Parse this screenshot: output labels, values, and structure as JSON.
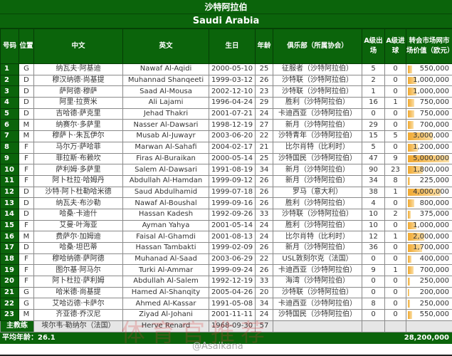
{
  "title": "沙特阿拉伯",
  "subtitle": "Saudi Arabia",
  "headers": {
    "no": "号码",
    "pos": "位置",
    "cn": "中文",
    "en": "英文",
    "dob": "生日",
    "age": "年龄",
    "club": "俱乐部（所属协会）",
    "caps": "A级出场",
    "goals": "A级进球",
    "value": "转会市场网市场价值（欧元）"
  },
  "players": [
    {
      "no": "1",
      "pos": "G",
      "cn": "纳瓦夫·阿基迪",
      "en": "Nawaf Al-Aqidi",
      "dob": "2000-05-10",
      "age": "25",
      "club": "征服者（沙特阿拉伯）",
      "caps": "5",
      "goals": "0",
      "value": "550,000",
      "v": 550000
    },
    {
      "no": "2",
      "pos": "D",
      "cn": "穆汉纳德·尚基提",
      "en": "Muhannad Shanqeeti",
      "dob": "1999-03-12",
      "age": "26",
      "club": "沙特联（沙特阿拉伯）",
      "caps": "2",
      "goals": "0",
      "value": "1,000,000",
      "v": 1000000
    },
    {
      "no": "3",
      "pos": "D",
      "cn": "萨阿德·穆萨",
      "en": "Saad Al-Mousa",
      "dob": "2002-12-10",
      "age": "23",
      "club": "沙特联（沙特阿拉伯）",
      "caps": "1",
      "goals": "0",
      "value": "1,000,000",
      "v": 1000000
    },
    {
      "no": "4",
      "pos": "D",
      "cn": "阿里·拉贾米",
      "en": "Ali Lajami",
      "dob": "1996-04-24",
      "age": "29",
      "club": "胜利（沙特阿拉伯）",
      "caps": "16",
      "goals": "1",
      "value": "750,000",
      "v": 750000
    },
    {
      "no": "5",
      "pos": "D",
      "cn": "吉哈德·萨克里",
      "en": "Jehad Thakri",
      "dob": "2001-07-21",
      "age": "24",
      "club": "卡迪西亚（沙特阿拉伯）",
      "caps": "0",
      "goals": "0",
      "value": "750,000",
      "v": 750000
    },
    {
      "no": "6",
      "pos": "M",
      "cn": "纳赛尔·多萨里",
      "en": "Nasser Al-Dawsari",
      "dob": "1998-12-19",
      "age": "27",
      "club": "新月（沙特阿拉伯）",
      "caps": "29",
      "goals": "0",
      "value": "700,000",
      "v": 700000
    },
    {
      "no": "7",
      "pos": "M",
      "cn": "穆萨卜·朱瓦伊尔",
      "en": "Musab Al-Juwayr",
      "dob": "2003-06-20",
      "age": "22",
      "club": "沙特青年（沙特阿拉伯）",
      "caps": "15",
      "goals": "5",
      "value": "3,000,000",
      "v": 3000000
    },
    {
      "no": "8",
      "pos": "F",
      "cn": "马尔万·萨哈菲",
      "en": "Marwan Al-Sahafi",
      "dob": "2004-02-17",
      "age": "21",
      "club": "比尔肖特（比利时）",
      "caps": "5",
      "goals": "0",
      "value": "1,200,000",
      "v": 1200000
    },
    {
      "no": "9",
      "pos": "F",
      "cn": "菲拉斯·布赖坎",
      "en": "Firas Al-Buraikan",
      "dob": "2000-05-14",
      "age": "25",
      "club": "沙特国民（沙特阿拉伯）",
      "caps": "47",
      "goals": "9",
      "value": "5,000,000",
      "v": 5000000
    },
    {
      "no": "10",
      "pos": "F",
      "cn": "萨利姆·多萨里",
      "en": "Salem Al-Dawsari",
      "dob": "1991-08-19",
      "age": "34",
      "club": "新月（沙特阿拉伯）",
      "caps": "90",
      "goals": "23",
      "value": "1,800,000",
      "v": 1800000
    },
    {
      "no": "11",
      "pos": "F",
      "cn": "阿卜杜拉·哈姆丹",
      "en": "Abdullah Al-Hamdan",
      "dob": "1999-09-12",
      "age": "26",
      "club": "新月（沙特阿拉伯）",
      "caps": "34",
      "goals": "8",
      "value": "225,000",
      "v": 225000
    },
    {
      "no": "12",
      "pos": "D",
      "cn": "沙特·阿卜杜勒哈米德",
      "en": "Saud Abdulhamid",
      "dob": "1999-07-18",
      "age": "26",
      "club": "罗马（意大利）",
      "caps": "38",
      "goals": "1",
      "value": "4,000,000",
      "v": 4000000
    },
    {
      "no": "13",
      "pos": "D",
      "cn": "纳瓦夫·布沙勒",
      "en": "Nawaf Al-Boushal",
      "dob": "1999-09-16",
      "age": "26",
      "club": "胜利（沙特阿拉伯）",
      "caps": "4",
      "goals": "0",
      "value": "800,000",
      "v": 800000
    },
    {
      "no": "14",
      "pos": "D",
      "cn": "哈桑·卡迪什",
      "en": "Hassan Kadesh",
      "dob": "1992-09-26",
      "age": "33",
      "club": "沙特联（沙特阿拉伯）",
      "caps": "10",
      "goals": "2",
      "value": "375,000",
      "v": 375000
    },
    {
      "no": "15",
      "pos": "F",
      "cn": "艾曼·叶海亚",
      "en": "Ayman Yahya",
      "dob": "2001-05-14",
      "age": "24",
      "club": "胜利（沙特阿拉伯）",
      "caps": "10",
      "goals": "0",
      "value": "1,000,000",
      "v": 1000000
    },
    {
      "no": "16",
      "pos": "M",
      "cn": "费萨尔·加姆迪",
      "en": "Faisal Al-Ghamdi",
      "dob": "2001-08-13",
      "age": "24",
      "club": "比尔肖特（比利时）",
      "caps": "12",
      "goals": "1",
      "value": "2,000,000",
      "v": 2000000
    },
    {
      "no": "17",
      "pos": "D",
      "cn": "哈桑·坦巴蒂",
      "en": "Hassan Tambakti",
      "dob": "1999-02-09",
      "age": "26",
      "club": "新月（沙特阿拉伯）",
      "caps": "36",
      "goals": "0",
      "value": "1,700,000",
      "v": 1700000
    },
    {
      "no": "18",
      "pos": "F",
      "cn": "穆哈纳德·萨阿德",
      "en": "Muhanad Al-Saad",
      "dob": "2003-06-29",
      "age": "22",
      "club": "USL敦刻尔克（法国）",
      "caps": "0",
      "goals": "0",
      "value": "400,000",
      "v": 400000
    },
    {
      "no": "19",
      "pos": "F",
      "cn": "图尔基·阿马尔",
      "en": "Turki Al-Ammar",
      "dob": "1999-09-24",
      "age": "26",
      "club": "卡迪西亚（沙特阿拉伯）",
      "caps": "9",
      "goals": "1",
      "value": "700,000",
      "v": 700000
    },
    {
      "no": "20",
      "pos": "F",
      "cn": "阿卜杜拉·萨利姆",
      "en": "Abdullah Al-Salem",
      "dob": "1992-12-19",
      "age": "33",
      "club": "海湾（沙特阿拉伯）",
      "caps": "0",
      "goals": "0",
      "value": "250,000",
      "v": 250000
    },
    {
      "no": "21",
      "pos": "G",
      "cn": "哈米德·尚基提",
      "en": "Hamed Al-Shanqity",
      "dob": "2005-04-26",
      "age": "20",
      "club": "沙特联（沙特阿拉伯）",
      "caps": "0",
      "goals": "0",
      "value": "200,000",
      "v": 200000
    },
    {
      "no": "22",
      "pos": "G",
      "cn": "艾哈迈德·卡萨尔",
      "en": "Ahmed Al-Kassar",
      "dob": "1991-05-08",
      "age": "34",
      "club": "卡迪西亚（沙特阿拉伯）",
      "caps": "8",
      "goals": "0",
      "value": "250,000",
      "v": 250000
    },
    {
      "no": "23",
      "pos": "M",
      "cn": "齐亚德·乔汉尼",
      "en": "Ziyad Al-Johani",
      "dob": "2001-11-11",
      "age": "24",
      "club": "沙特国民（沙特阿拉伯）",
      "caps": "0",
      "goals": "0",
      "value": "550,000",
      "v": 550000
    }
  ],
  "coach": {
    "label": "主教练",
    "cn": "埃尔韦·勒纳尔（法国）",
    "en": "Herve Renard",
    "dob": "1968-09-30",
    "age": "57"
  },
  "footer": {
    "avg_age": "平均年龄：26.1",
    "total": "28,200,000"
  },
  "watermark": {
    "handle": "@Asaikana",
    "overlay": "体育官推荐"
  },
  "colors": {
    "header_green": "#0b640b",
    "bar_fill": "#f0a830"
  }
}
